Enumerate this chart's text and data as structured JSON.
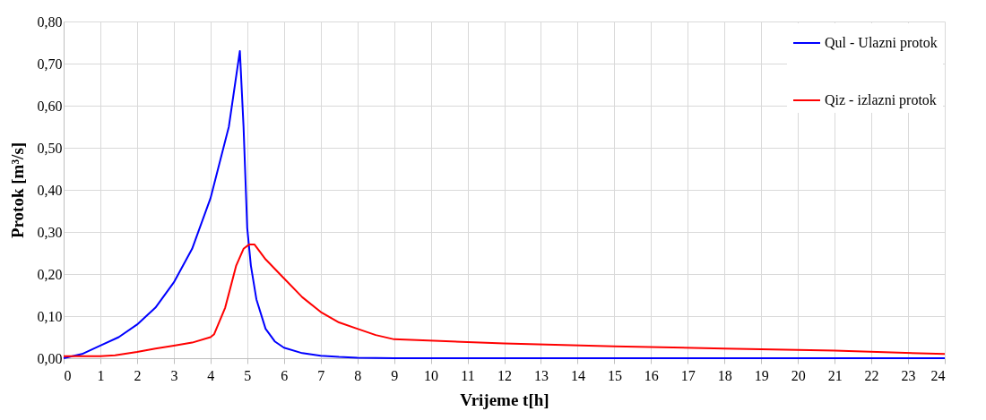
{
  "chart_data": {
    "type": "line",
    "xlabel": "Vrijeme t[h]",
    "ylabel": "Protok [m³/s]",
    "xlim": [
      0,
      24
    ],
    "ylim": [
      0,
      0.8
    ],
    "xticks": [
      0,
      1,
      2,
      3,
      4,
      5,
      6,
      7,
      8,
      9,
      10,
      11,
      12,
      13,
      14,
      15,
      16,
      17,
      18,
      19,
      20,
      21,
      22,
      23,
      24
    ],
    "yticks": [
      {
        "value": 0,
        "label": "0,00"
      },
      {
        "value": 0.1,
        "label": "0,10"
      },
      {
        "value": 0.2,
        "label": "0,20"
      },
      {
        "value": 0.3,
        "label": "0,30"
      },
      {
        "value": 0.4,
        "label": "0,40"
      },
      {
        "value": 0.5,
        "label": "0,50"
      },
      {
        "value": 0.6,
        "label": "0,60"
      },
      {
        "value": 0.7,
        "label": "0,70"
      },
      {
        "value": 0.8,
        "label": "0,80"
      }
    ],
    "grid": true,
    "legend": "top right",
    "marker": "none",
    "line_style": "solid",
    "series": [
      {
        "name": "Qul - Ulazni protok",
        "color": "#0000ff",
        "x": [
          0,
          0.5,
          1,
          1.5,
          2,
          2.5,
          3,
          3.5,
          4,
          4.5,
          4.8,
          4.9,
          5,
          5.1,
          5.25,
          5.5,
          5.75,
          6,
          6.5,
          7,
          7.5,
          8,
          9,
          24
        ],
        "values": [
          0,
          0.01,
          0.03,
          0.05,
          0.08,
          0.12,
          0.18,
          0.26,
          0.38,
          0.55,
          0.73,
          0.55,
          0.31,
          0.22,
          0.14,
          0.07,
          0.04,
          0.025,
          0.012,
          0.006,
          0.003,
          0.001,
          0,
          0
        ]
      },
      {
        "name": "Qiz - izlazni protok",
        "color": "#ff0000",
        "x": [
          0,
          1,
          1.4,
          2,
          2.5,
          3,
          3.5,
          4,
          4.1,
          4.4,
          4.7,
          4.9,
          5.05,
          5.2,
          5.5,
          6,
          6.5,
          7,
          7.5,
          8,
          8.5,
          9,
          12,
          15,
          18,
          21,
          24
        ],
        "values": [
          0.005,
          0.005,
          0.007,
          0.015,
          0.023,
          0.03,
          0.037,
          0.05,
          0.057,
          0.12,
          0.22,
          0.26,
          0.27,
          0.27,
          0.235,
          0.19,
          0.145,
          0.11,
          0.085,
          0.07,
          0.055,
          0.045,
          0.035,
          0.028,
          0.023,
          0.018,
          0.01
        ]
      }
    ]
  }
}
